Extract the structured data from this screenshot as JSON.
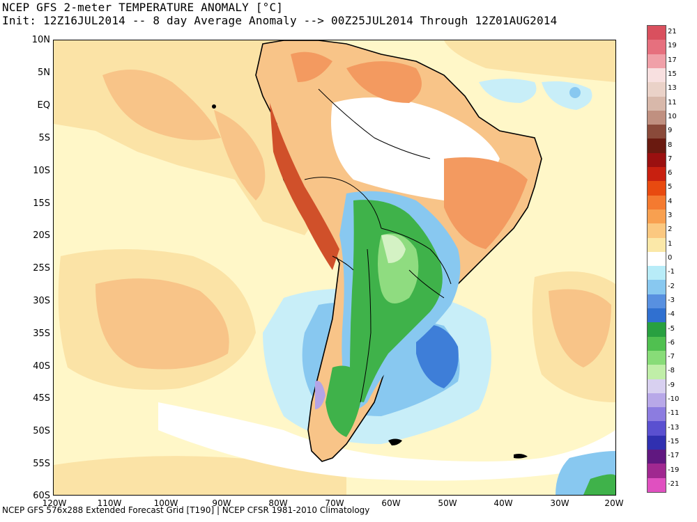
{
  "header": {
    "title_line1": "NCEP GFS 2-meter TEMPERATURE ANOMALY [°C]",
    "title_line2": "Init: 12Z16JUL2014 -- 8 day Average Anomaly --> 00Z25JUL2014 Through 12Z01AUG2014"
  },
  "axes": {
    "lat_labels": [
      "10N",
      "5N",
      "EQ",
      "5S",
      "10S",
      "15S",
      "20S",
      "25S",
      "30S",
      "35S",
      "40S",
      "45S",
      "50S",
      "55S",
      "60S"
    ],
    "lon_labels": [
      "120W",
      "110W",
      "100W",
      "90W",
      "80W",
      "70W",
      "60W",
      "50W",
      "40W",
      "30W",
      "20W"
    ]
  },
  "footer": "NCEP GFS 576x288 Extended Forecast Grid [T190] | NCEP CFSR 1981-2010 Climatology",
  "colorbar": {
    "unit": "°C",
    "labels": [
      "21",
      "19",
      "17",
      "15",
      "13",
      "11",
      "10",
      "9",
      "8",
      "7",
      "6",
      "5",
      "4",
      "3",
      "2",
      "1",
      "0",
      "-1",
      "-2",
      "-3",
      "-4",
      "-5",
      "-6",
      "-7",
      "-8",
      "-9",
      "-10",
      "-11",
      "-13",
      "-15",
      "-17",
      "-19",
      "-21"
    ],
    "colors": [
      "#d9505e",
      "#e6707e",
      "#f0a0a8",
      "#f8e0e0",
      "#ead2c8",
      "#d8b8aa",
      "#c09080",
      "#8a4a3a",
      "#6a1a10",
      "#9a1010",
      "#c82010",
      "#e84a10",
      "#f47a30",
      "#f8a050",
      "#fbc880",
      "#fbe8a8",
      "#ffffff",
      "#b8ecf8",
      "#88c8f0",
      "#5890e0",
      "#3070d0",
      "#28a040",
      "#50c050",
      "#88dc78",
      "#c0eea8",
      "#d8d0f0",
      "#b8a8e8",
      "#8c7ce0",
      "#5a50d0",
      "#3030b0",
      "#601880",
      "#a02890",
      "#e050c0"
    ]
  },
  "map": {
    "region": "South America",
    "colors": {
      "ocean_neutral": "#fff7c8",
      "warm_light": "#fbe3a6",
      "warm_mid": "#f8c488",
      "warm_strong": "#f39a60",
      "warm_deep": "#d0502a",
      "white_zone": "#ffffff",
      "cold_light": "#c8eef8",
      "cold_mid": "#88c8f0",
      "cold_strong": "#3e7ed8",
      "green_mid": "#3fb24a",
      "green_light": "#8fdc80",
      "green_pale": "#d4f2c4",
      "purple": "#b4a4e6",
      "coast": "#000000"
    }
  }
}
